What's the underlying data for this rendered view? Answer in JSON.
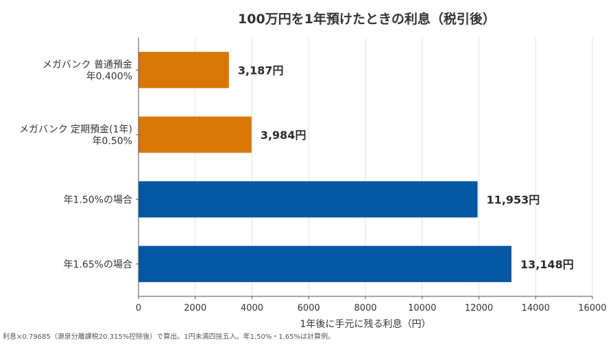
{
  "chart_data": {
    "type": "bar",
    "orientation": "horizontal",
    "title": "100万円を1年預けたときの利息（税引後）",
    "xlabel": "1年後に手元に残る利息（円）",
    "ylabel": "",
    "xlim": [
      0,
      16000
    ],
    "xticks": [
      0,
      2000,
      4000,
      6000,
      8000,
      10000,
      12000,
      14000,
      16000
    ],
    "grid": true,
    "categories": [
      [
        "メガバンク 普通預金",
        "年0.400%"
      ],
      [
        "メガバンク 定期預金(1年)",
        "年0.50%"
      ],
      [
        "年1.50%の場合"
      ],
      [
        "年1.65%の場合"
      ]
    ],
    "values": [
      3187,
      3984,
      11953,
      13148
    ],
    "value_labels": [
      "3,187円",
      "3,984円",
      "11,953円",
      "13,148円"
    ],
    "bar_colors": [
      "#d97706",
      "#d97706",
      "#0556a3",
      "#0556a3"
    ]
  },
  "footnote": "利息×0.79685（源泉分離課税20.315%控除後）で算出。1円未満四捨五入。年1.50%・1.65%は計算例。"
}
